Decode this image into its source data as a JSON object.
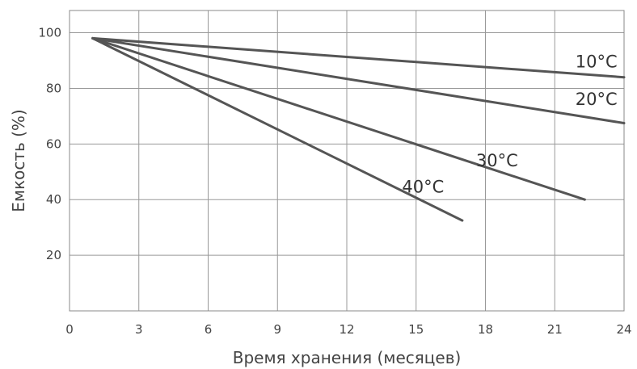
{
  "chart_data": {
    "type": "line",
    "title": "",
    "xlabel": "Время хранения (месяцев)",
    "ylabel": "Емкость (%)",
    "xlim": [
      0,
      24
    ],
    "ylim": [
      0,
      108
    ],
    "xticks": [
      0,
      3,
      6,
      9,
      12,
      15,
      18,
      21,
      24
    ],
    "yticks": [
      20,
      40,
      60,
      80,
      100
    ],
    "grid": true,
    "legend": "inline labels",
    "line_color": "#555555",
    "grid_color": "#999999",
    "series": [
      {
        "name": "10°C",
        "x": [
          1,
          24
        ],
        "y": [
          98,
          84
        ]
      },
      {
        "name": "20°C",
        "x": [
          1,
          24
        ],
        "y": [
          98,
          67.5
        ]
      },
      {
        "name": "30°C",
        "x": [
          1,
          22.3
        ],
        "y": [
          98,
          40
        ]
      },
      {
        "name": "40°C",
        "x": [
          1,
          17
        ],
        "y": [
          98,
          32.5
        ]
      }
    ]
  }
}
